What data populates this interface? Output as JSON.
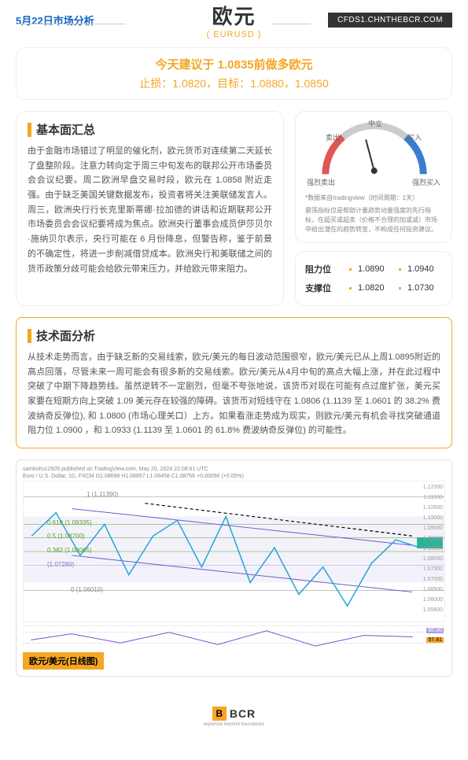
{
  "header": {
    "date": "5月22日市场分析",
    "pair_cn": "欧元",
    "pair_en": "( EURUSD )",
    "url": "CFDS1.CHNTHEBCR.COM"
  },
  "recommendation": {
    "main": "今天建议于 1.0835前做多欧元",
    "sub": "止损：1.0820，目标：1.0880，1.0850"
  },
  "fundamentals": {
    "title": "基本面汇总",
    "body": "由于金融市场错过了明显的催化剂，欧元货币对连续第二天延长了盘整阶段。注意力转向定于周三中旬发布的联邦公开市场委员会会议纪要。周二欧洲早盘交易时段，欧元在 1.0858 附近走强。由于缺乏美国关键数据发布，投资者将关注美联储发言人。周三，欧洲央行行长克里斯蒂娜·拉加德的讲话和近期联邦公开市场委员会会议纪要将成为焦点。欧洲央行董事会成员伊莎贝尔·施纳贝尔表示，央行可能在 6 月份降息，但警告称，鉴于前景的不确定性，将进一步削减借贷成本。欧洲央行和美联储之间的货币政策分歧可能会给欧元带来压力，并给欧元带来阻力。"
  },
  "gauge": {
    "labels": {
      "strong_sell": "强烈卖出",
      "sell": "卖出",
      "neutral": "中立",
      "buy": "买入",
      "strong_buy": "强烈买入"
    },
    "source": "*数据来自tradingview（时间周期：1天）",
    "note": "震荡指标仅是帮助计量趋势动量强度的先行指标，在超买或超卖（价格不合理的加或减）市场中给出潜在的趋势转变，不构成任何投资建议。",
    "colors": {
      "sell": "#e05555",
      "mid": "#cccccc",
      "buy": "#3a7ed0"
    }
  },
  "levels": {
    "resistance_label": "阻力位",
    "support_label": "支撑位",
    "resistance": [
      "1.0890",
      "1.0940"
    ],
    "support": [
      "1.0820",
      "1.0730"
    ]
  },
  "technical": {
    "title": "技术面分析",
    "body": "从技术走势而言，由于缺乏新的交易线索，欧元/美元的每日波动范围很窄，欧元/美元已从上周1.0895附近的高点回落，尽管未来一周可能会有很多新的交易线索。欧元/美元从4月中旬的高点大幅上涨，并在此过程中突破了中期下降趋势线。虽然逆转不一定剧烈，但毫不夸张地说，该货币对现在可能有点过度扩张，美元买家要在短期方向上突破 1.09 美元存在较强的障碍。该货币对短线守在 1.0806 (1.1139 至 1.0601 的 38.2% 费波纳奇反弹位), 和 1.0800 (市场心理关口）上方。如果看涨走势成为现实，则欧元/美元有机会寻找突破通道阻力位 1.0900 ，和 1.0933 (1.1139 至 1.0601 的 61.8% 费波纳奇反弹位) 的可能性。"
  },
  "chart": {
    "meta_line1": "samkohcc2605 published on TradingView.com, May 20, 2024 22:08:61 UTC",
    "meta_line2": "Euro / U.S. Dollar, 1D, FXCM   O1.08698  H1.08857  L1.08458  C1.08756 +0.00056 (+0.05%)",
    "caption": "欧元/美元(日线图)",
    "y_ticks": [
      "1.12000",
      "1.11000",
      "1.10500",
      "1.10000",
      "1.09500",
      "1.09000",
      "1.08864",
      "1.08000",
      "1.07500",
      "1.07000",
      "1.06500",
      "1.06000",
      "1.05600"
    ],
    "x_ticks": [
      "16",
      "Feb",
      "16",
      "Mar",
      "16",
      "Apr",
      "16",
      "May",
      "20",
      "Jun"
    ],
    "fib_labels": [
      "1 (1.11390)",
      "0.618 (1.09335)",
      "0.5 (1.08700)",
      "0.382 (1.08065)",
      "0 (1.06010)"
    ],
    "fib_colors": [
      "#888888",
      "#5aa02c",
      "#5aa02c",
      "#5aa02c",
      "#888888"
    ],
    "support_line": "(1.07280)",
    "osc_vals": [
      "80.00",
      "57.81"
    ],
    "colors": {
      "price_line": "#2aa5d8",
      "trend_line": "#000000",
      "channel": "#6a5acd",
      "fib_bg": "rgba(106,90,205,0.08)",
      "accent_box": "#2eb39a"
    }
  },
  "footer": {
    "brand": "BCR",
    "tag": "expertise beyond boundaries"
  }
}
